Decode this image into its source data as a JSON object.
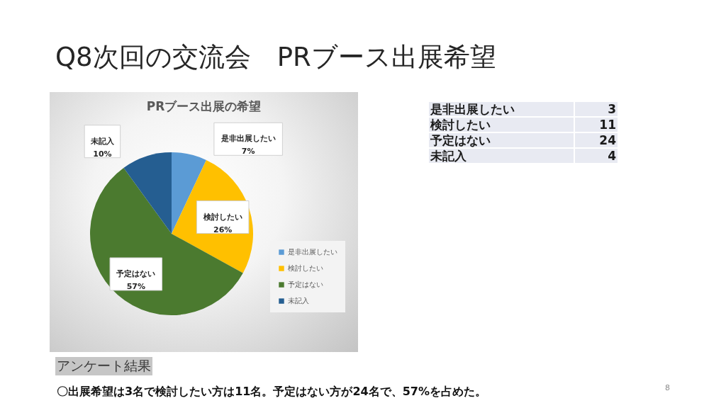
{
  "chart_data": [
    {
      "type": "pie",
      "title": "Q8次回の交流会　PRブース出展希望",
      "subtitle": "PRブース出展の希望",
      "categories": [
        "是非出展したい",
        "検討したい",
        "予定はない",
        "未記入"
      ],
      "values": [
        7,
        26,
        57,
        10
      ],
      "colors": [
        "#5b9bd5",
        "#ffc000",
        "#4b7a2f",
        "#255e91"
      ],
      "value_labels": [
        "7%",
        "26%",
        "57%",
        "10%"
      ],
      "legend": "right",
      "annotations": [
        "アンケート結果",
        "〇出展希望は3名で検討したい方は11名。予定はない方が24名で、57%を占めた。",
        "8"
      ]
    },
    {
      "type": "other",
      "categories": [
        "是非出展したい",
        "検討したい",
        "予定はない",
        "未記入"
      ],
      "values": [
        3,
        11,
        24,
        4
      ],
      "data_labels": true
    }
  ]
}
